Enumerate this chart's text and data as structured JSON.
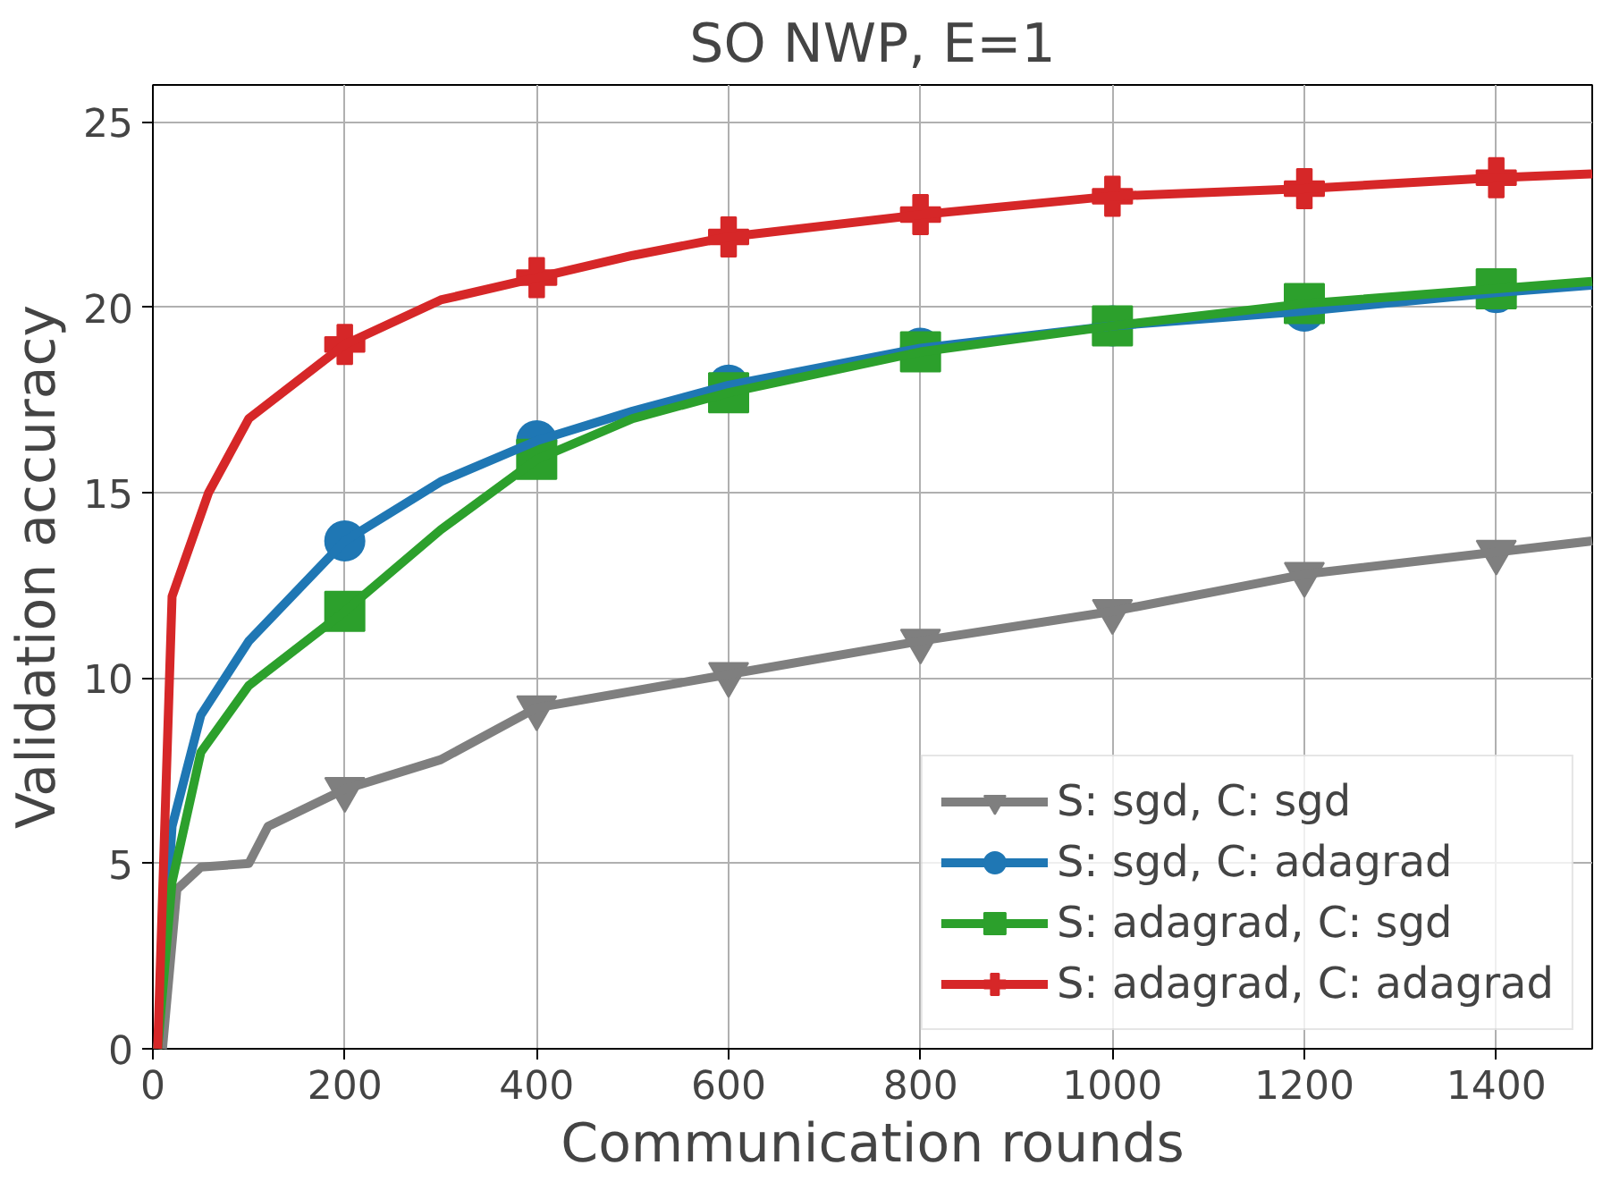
{
  "chart_data": {
    "type": "line",
    "title": "SO NWP, E=1",
    "xlabel": "Communication rounds",
    "ylabel": "Validation accuracy",
    "xlim": [
      0,
      1500
    ],
    "ylim": [
      0,
      26
    ],
    "xticks": [
      0,
      200,
      400,
      600,
      800,
      1000,
      1200,
      1400
    ],
    "yticks": [
      0,
      5,
      10,
      15,
      20,
      25
    ],
    "grid": true,
    "legend": "bottom right",
    "line_style": "solid",
    "series": [
      {
        "name": "S: sgd, C: sgd",
        "color": "#7f7f7f",
        "marker": "triangle",
        "x": [
          10,
          25,
          50,
          100,
          120,
          200,
          300,
          400,
          600,
          800,
          1000,
          1200,
          1400,
          1500
        ],
        "values": [
          0,
          4.3,
          4.9,
          5.0,
          6.0,
          7.0,
          7.8,
          9.2,
          10.1,
          11.0,
          11.8,
          12.8,
          13.4,
          13.7
        ]
      },
      {
        "name": "S: sgd, C: adagrad",
        "color": "#1f77b4",
        "marker": "circle",
        "x": [
          5,
          20,
          50,
          100,
          200,
          300,
          400,
          500,
          600,
          800,
          1000,
          1200,
          1400,
          1500
        ],
        "values": [
          0,
          6,
          9,
          11,
          13.7,
          15.3,
          16.4,
          17.2,
          17.9,
          18.9,
          19.5,
          19.9,
          20.4,
          20.6
        ]
      },
      {
        "name": "S: adagrad, C: sgd",
        "color": "#2ca02c",
        "marker": "square",
        "x": [
          5,
          20,
          50,
          100,
          200,
          300,
          400,
          500,
          600,
          800,
          1000,
          1200,
          1400,
          1500
        ],
        "values": [
          0,
          4.5,
          8,
          9.8,
          11.8,
          14,
          15.9,
          17,
          17.7,
          18.8,
          19.5,
          20.1,
          20.5,
          20.7
        ]
      },
      {
        "name": "S: adagrad, C: adagrad",
        "color": "#d62728",
        "marker": "cross",
        "x": [
          5,
          20,
          58,
          100,
          200,
          300,
          400,
          500,
          600,
          800,
          1000,
          1200,
          1400,
          1500
        ],
        "values": [
          0,
          12.2,
          15,
          17,
          19,
          20.2,
          20.8,
          21.4,
          21.9,
          22.5,
          23.0,
          23.2,
          23.5,
          23.6
        ]
      }
    ]
  }
}
